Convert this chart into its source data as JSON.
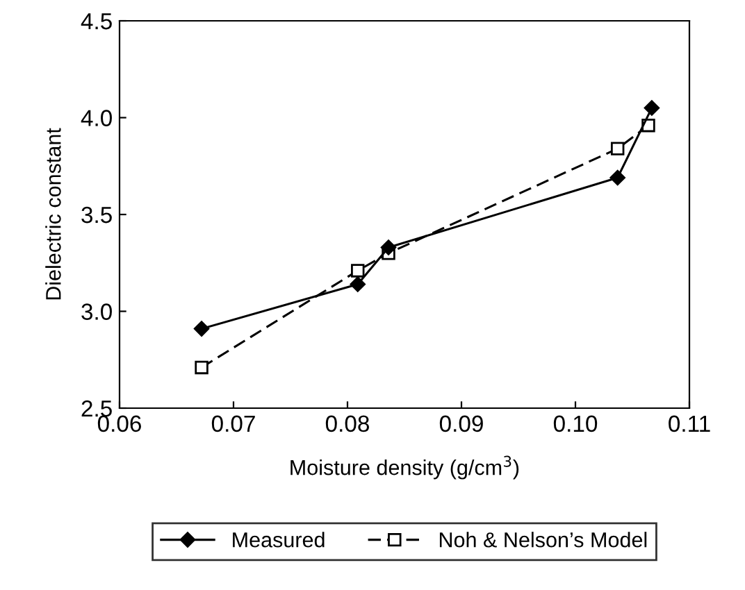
{
  "chart_data": {
    "type": "line",
    "xlabel": "Moisture density (g/cm$^{3}$)",
    "ylabel": "Dielectric constant",
    "xlim": [
      0.06,
      0.11
    ],
    "xticks": [
      {
        "value": 0.06,
        "label": "0.06"
      },
      {
        "value": 0.07,
        "label": "0.07"
      },
      {
        "value": 0.08,
        "label": "0.08"
      },
      {
        "value": 0.09,
        "label": "0.09"
      },
      {
        "value": 0.1,
        "label": "0.10"
      },
      {
        "value": 0.11,
        "label": "0.11"
      }
    ],
    "ylim": [
      2.5,
      4.5
    ],
    "yticks": [
      {
        "value": 2.5,
        "label": "2.5"
      },
      {
        "value": 3.0,
        "label": "3.0"
      },
      {
        "value": 3.5,
        "label": "3.5"
      },
      {
        "value": 4.0,
        "label": "4.0"
      },
      {
        "value": 4.5,
        "label": "4.5"
      }
    ],
    "legend": "bottom",
    "grid": false,
    "series": [
      {
        "name": "Measured",
        "color": "#000000",
        "marker": "diamond",
        "line_style": "solid",
        "x": [
          0.0672,
          0.0809,
          0.0836,
          0.1037,
          0.1067
        ],
        "values": [
          2.91,
          3.14,
          3.33,
          3.69,
          4.05
        ]
      },
      {
        "name": "Noh & Nelson’s Model",
        "color": "#000000",
        "marker": "square",
        "line_style": "dashed",
        "x": [
          0.0672,
          0.0809,
          0.0836,
          0.1037,
          0.1064
        ],
        "values": [
          2.71,
          3.21,
          3.3,
          3.84,
          3.96
        ]
      }
    ]
  }
}
